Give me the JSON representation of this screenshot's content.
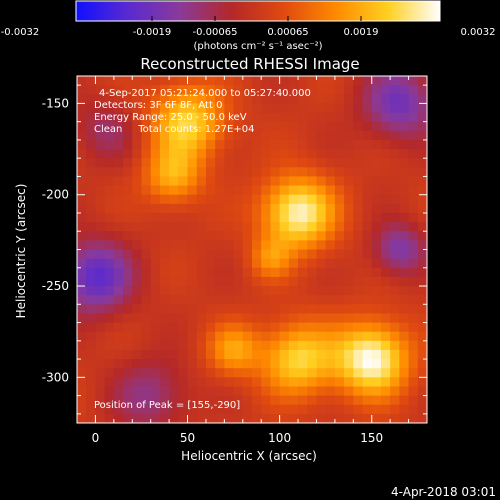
{
  "colorbar": {
    "tick_labels": [
      "-0.0032",
      "-0.0019",
      "-0.00065",
      "0.00065",
      "0.0019",
      "0.0032"
    ],
    "units": "(photons cm⁻² s⁻¹ asec⁻²)",
    "colors": [
      "#1010ff",
      "#5a2ad0",
      "#8a3a9a",
      "#b42828",
      "#e04a10",
      "#ff8a00",
      "#ffd020",
      "#ffffff"
    ]
  },
  "chart_data": {
    "type": "heatmap",
    "title": "Reconstructed RHESSI Image",
    "xlabel": "Heliocentric X (arcsec)",
    "ylabel": "Heliocentric Y (arcsec)",
    "xlim": [
      -10,
      180
    ],
    "ylim": [
      -325,
      -135
    ],
    "x_ticks": [
      0,
      50,
      100,
      150
    ],
    "y_ticks": [
      -150,
      -200,
      -250,
      -300
    ],
    "value_range": [
      -0.0032,
      0.0032
    ],
    "sources": [
      {
        "x": 50,
        "y": -160,
        "sigma": 14,
        "amp": 0.0024
      },
      {
        "x": 42,
        "y": -190,
        "sigma": 11,
        "amp": 0.0018
      },
      {
        "x": 110,
        "y": -210,
        "sigma": 14,
        "amp": 0.003
      },
      {
        "x": 95,
        "y": -235,
        "sigma": 8,
        "amp": 0.0012
      },
      {
        "x": 110,
        "y": -290,
        "sigma": 14,
        "amp": 0.0024
      },
      {
        "x": 150,
        "y": -290,
        "sigma": 14,
        "amp": 0.0032
      },
      {
        "x": 75,
        "y": -285,
        "sigma": 10,
        "amp": 0.0016
      },
      {
        "x": 0,
        "y": -245,
        "sigma": 14,
        "amp": -0.0022
      },
      {
        "x": 165,
        "y": -230,
        "sigma": 10,
        "amp": -0.0016
      },
      {
        "x": 165,
        "y": -150,
        "sigma": 14,
        "amp": -0.0018
      },
      {
        "x": 30,
        "y": -310,
        "sigma": 14,
        "amp": -0.0012
      },
      {
        "x": 5,
        "y": -165,
        "sigma": 12,
        "amp": -0.0009
      }
    ],
    "annotations": [
      "4-Sep-2017 05:21:24.000 to 05:27:40.000",
      "Detectors: 3F 6F 8F, Att 0",
      "Energy Range: 25.0 - 50.0 keV",
      "Clean     Total counts: 1.27E+04"
    ],
    "peak_label": "Position of Peak = [155,-290]",
    "peak": [
      155,
      -290
    ]
  },
  "timestamp": "4-Apr-2018 03:01"
}
